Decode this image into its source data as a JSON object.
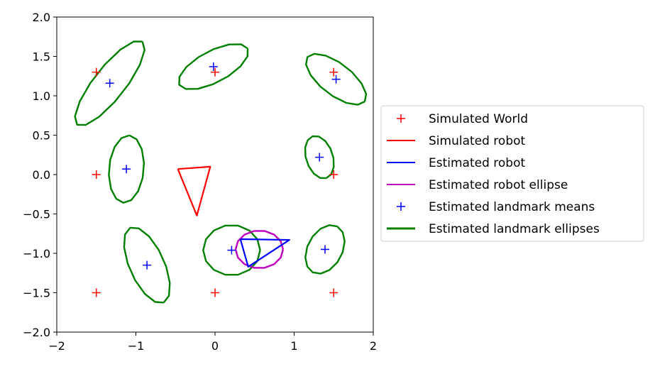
{
  "chart_data": {
    "type": "scatter",
    "title": "",
    "xlabel": "",
    "ylabel": "",
    "xlim": [
      -2,
      2
    ],
    "ylim": [
      -2,
      2
    ],
    "xticks": [
      "−2",
      "−1",
      "0",
      "1",
      "2"
    ],
    "xtick_values": [
      -2,
      -1,
      0,
      1,
      2
    ],
    "yticks": [
      "−2.0",
      "−1.5",
      "−1.0",
      "−0.5",
      "0.0",
      "0.5",
      "1.0",
      "1.5",
      "2.0"
    ],
    "ytick_values": [
      -2.0,
      -1.5,
      -1.0,
      -0.5,
      0.0,
      0.5,
      1.0,
      1.5,
      2.0
    ],
    "grid": false,
    "legend_position": "outside-right",
    "series": [
      {
        "name": "Simulated World",
        "kind": "markers",
        "marker": "+",
        "color": "#ff0000",
        "points": [
          [
            -1.5,
            1.3
          ],
          [
            0,
            1.3
          ],
          [
            1.5,
            1.3
          ],
          [
            -1.5,
            0
          ],
          [
            1.5,
            0
          ],
          [
            -1.5,
            -1.5
          ],
          [
            0,
            -1.5
          ],
          [
            1.5,
            -1.5
          ]
        ]
      },
      {
        "name": "Simulated robot",
        "kind": "polygon",
        "color": "#ff0000",
        "points": [
          [
            -0.47,
            0.07
          ],
          [
            -0.06,
            0.1
          ],
          [
            -0.23,
            -0.52
          ]
        ]
      },
      {
        "name": "Estimated robot",
        "kind": "polygon",
        "color": "#0000ff",
        "points": [
          [
            0.32,
            -0.82
          ],
          [
            0.94,
            -0.83
          ],
          [
            0.42,
            -1.17
          ]
        ]
      },
      {
        "name": "Estimated robot ellipse",
        "kind": "ellipse",
        "color": "#bf00bf",
        "ellipses": [
          {
            "cx": 0.56,
            "cy": -0.95,
            "rx": 0.3,
            "ry": 0.24,
            "angle": 0
          }
        ]
      },
      {
        "name": "Estimated landmark means",
        "kind": "markers",
        "marker": "+",
        "color": "#0000ff",
        "points": [
          [
            -1.33,
            1.16
          ],
          [
            -0.02,
            1.37
          ],
          [
            1.53,
            1.21
          ],
          [
            -1.12,
            0.07
          ],
          [
            1.32,
            0.22
          ],
          [
            -0.86,
            -1.15
          ],
          [
            0.21,
            -0.96
          ],
          [
            1.39,
            -0.95
          ]
        ]
      },
      {
        "name": "Estimated landmark ellipses",
        "kind": "ellipse",
        "color": "#008000",
        "ellipses": [
          {
            "cx": -1.33,
            "cy": 1.16,
            "rx": 0.67,
            "ry": 0.2,
            "angle": 52
          },
          {
            "cx": -0.02,
            "cy": 1.37,
            "rx": 0.49,
            "ry": 0.2,
            "angle": 28
          },
          {
            "cx": 1.53,
            "cy": 1.21,
            "rx": 0.46,
            "ry": 0.2,
            "angle": -38
          },
          {
            "cx": -1.12,
            "cy": 0.07,
            "rx": 0.43,
            "ry": 0.22,
            "angle": 85
          },
          {
            "cx": 1.32,
            "cy": 0.22,
            "rx": 0.28,
            "ry": 0.17,
            "angle": -72
          },
          {
            "cx": -0.86,
            "cy": -1.15,
            "rx": 0.52,
            "ry": 0.22,
            "angle": -66
          },
          {
            "cx": 0.21,
            "cy": -0.96,
            "rx": 0.36,
            "ry": 0.32,
            "angle": 0
          },
          {
            "cx": 1.39,
            "cy": -0.95,
            "rx": 0.33,
            "ry": 0.22,
            "angle": 62
          }
        ]
      }
    ]
  }
}
